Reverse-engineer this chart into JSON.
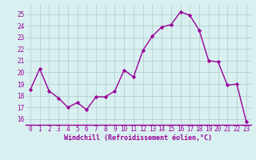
{
  "x": [
    0,
    1,
    2,
    3,
    4,
    5,
    6,
    7,
    8,
    9,
    10,
    11,
    12,
    13,
    14,
    15,
    16,
    17,
    18,
    19,
    20,
    21,
    22,
    23
  ],
  "y": [
    18.5,
    20.3,
    18.4,
    17.8,
    17.0,
    17.4,
    16.8,
    17.9,
    17.9,
    18.4,
    20.2,
    19.6,
    21.9,
    23.1,
    23.9,
    24.1,
    25.2,
    24.9,
    23.6,
    21.0,
    20.9,
    18.9,
    19.0,
    15.8
  ],
  "line_color": "#990099",
  "marker": "D",
  "markersize": 2.2,
  "linewidth": 1.0,
  "bg_color": "#d8f0f0",
  "grid_color": "#b0c8c8",
  "xlabel": "Windchill (Refroidissement éolien,°C)",
  "xlabel_color": "#990099",
  "xlabel_fontsize": 6.0,
  "tick_color": "#990099",
  "tick_fontsize": 5.5,
  "ytick_labels": [
    "16",
    "17",
    "18",
    "19",
    "20",
    "21",
    "22",
    "23",
    "24",
    "25"
  ],
  "ylim": [
    15.5,
    25.8
  ],
  "xlim": [
    -0.5,
    23.5
  ],
  "xtick_labels": [
    "0",
    "1",
    "2",
    "3",
    "4",
    "5",
    "6",
    "7",
    "8",
    "9",
    "10",
    "11",
    "12",
    "13",
    "14",
    "15",
    "16",
    "17",
    "18",
    "19",
    "20",
    "21",
    "22",
    "23"
  ],
  "spine_color": "#990099"
}
